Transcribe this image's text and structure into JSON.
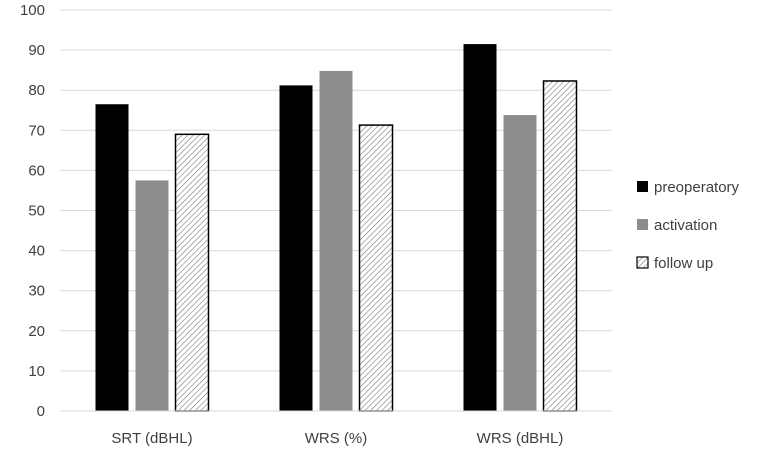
{
  "chart_data": {
    "type": "bar",
    "categories": [
      "SRT (dBHL)",
      "WRS (%)",
      "WRS (dBHL)"
    ],
    "series": [
      {
        "name": "preoperatory",
        "values": [
          76.5,
          81.2,
          91.5
        ],
        "color": "#000000",
        "pattern": "solid"
      },
      {
        "name": "activation",
        "values": [
          57.5,
          84.8,
          73.8
        ],
        "color": "#8c8c8c",
        "pattern": "solid"
      },
      {
        "name": "follow up",
        "values": [
          69.0,
          71.3,
          82.3
        ],
        "color": "#ffffff",
        "pattern": "diagonal-hatch"
      }
    ],
    "ylim": [
      0,
      100
    ],
    "yticks": [
      0,
      10,
      20,
      30,
      40,
      50,
      60,
      70,
      80,
      90,
      100
    ],
    "grid": true,
    "legend_position": "right"
  }
}
